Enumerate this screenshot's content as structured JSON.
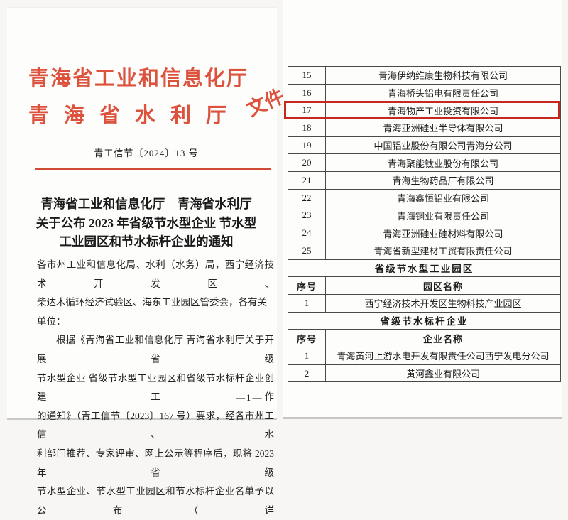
{
  "colors": {
    "header_red": "#dc523c",
    "rule_red": "#d04a35",
    "highlight_red": "#c5281c"
  },
  "left_page": {
    "header": {
      "line1": "青海省工业和信息化厅",
      "line2": "青海省水利厅",
      "suffix": "文件"
    },
    "doc_number": "青工信节〔2024〕13 号",
    "title_lines": [
      "青海省工业和信息化厅　青海省水利厅",
      "关于公布 2023 年省级节水型企业 节水型",
      "工业园区和节水标杆企业的通知"
    ],
    "body_lines": [
      "各市州工业和信息化局、水利（水务）局，西宁经济技术开发区、",
      "柴达木循环经济试验区、海东工业园区管委会，各有关单位：",
      "根据《青海省工业和信息化厅 青海省水利厅关于开展省级",
      "节水型企业 省级节水型工业园区和省级节水标杆企业创建工作",
      "的通知》（青工信节〔2023〕167 号）要求，经各市州工信、水",
      "利部门推荐、专家评审、网上公示等程序后，现将 2023 年省级",
      "节水型企业、节水型工业园区和节水标杆企业名单予以公布（详",
      ""
    ],
    "page_number": "—1—"
  },
  "right_page": {
    "table": {
      "highlighted_num": "17",
      "enterprise_rows": [
        {
          "num": "15",
          "name": "青海伊纳维康生物科技有限公司"
        },
        {
          "num": "16",
          "name": "青海桥头铝电有限责任公司"
        },
        {
          "num": "17",
          "name": "青海物产工业投资有限公司"
        },
        {
          "num": "18",
          "name": "青海亚洲硅业半导体有限公司"
        },
        {
          "num": "19",
          "name": "中国铝业股份有限公司青海分公司"
        },
        {
          "num": "20",
          "name": "青海聚能钛业股份有限公司"
        },
        {
          "num": "21",
          "name": "青海生物药品厂有限公司"
        },
        {
          "num": "22",
          "name": "青海鑫恒铝业有限公司"
        },
        {
          "num": "23",
          "name": "青海铜业有限责任公司"
        },
        {
          "num": "24",
          "name": "青海亚洲硅业硅材料有限公司"
        },
        {
          "num": "25",
          "name": "青海省新型建材工贸有限责任公司"
        }
      ],
      "park_section": {
        "title": "省级节水型工业园区",
        "header": {
          "num": "序号",
          "name": "园区名称"
        },
        "rows": [
          {
            "num": "1",
            "name": "西宁经济技术开发区生物科技产业园区"
          }
        ]
      },
      "benchmark_section": {
        "title": "省级节水标杆企业",
        "header": {
          "num": "序号",
          "name": "企业名称"
        },
        "rows": [
          {
            "num": "1",
            "name": "青海黄河上游水电开发有限责任公司西宁发电分公司"
          },
          {
            "num": "2",
            "name": "黄河鑫业有限公司"
          }
        ]
      }
    }
  }
}
